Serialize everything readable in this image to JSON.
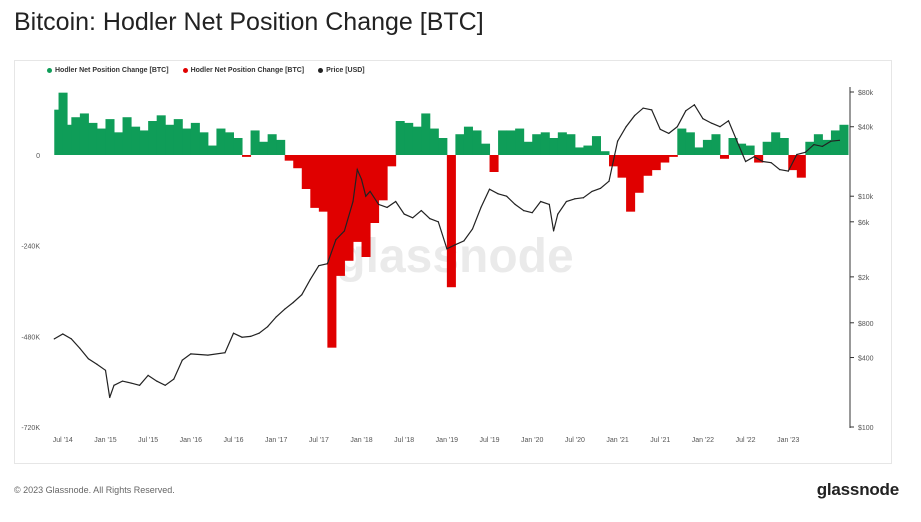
{
  "title": "Bitcoin: Hodler Net Position Change [BTC]",
  "footer": "© 2023 Glassnode. All Rights Reserved.",
  "brand": "glassnode",
  "watermark": "glassnode",
  "colors": {
    "positive": "#0f9d58",
    "negative": "#e00000",
    "price": "#222222"
  },
  "chart_data": {
    "type": "area",
    "title": "Bitcoin: Hodler Net Position Change [BTC]",
    "legend_position": "top-left",
    "legend": [
      "Hodler Net Position Change [BTC]",
      "Hodler Net Position Change [BTC]",
      "Price [USD]"
    ],
    "x_ticks": [
      "Jul '14",
      "Jan '15",
      "Jul '15",
      "Jan '16",
      "Jul '16",
      "Jan '17",
      "Jul '17",
      "Jan '18",
      "Jul '18",
      "Jan '19",
      "Jul '19",
      "Jan '20",
      "Jul '20",
      "Jan '21",
      "Jul '21",
      "Jan '22",
      "Jul '22",
      "Jan '23"
    ],
    "y_left": {
      "ticks": [
        0,
        -240000,
        -480000,
        -720000
      ],
      "tick_labels": [
        "0",
        "-240K",
        "-480K",
        "-720K"
      ],
      "ylim": [
        -720000,
        180000
      ]
    },
    "y_right": {
      "scale": "log",
      "ticks": [
        80000,
        40000,
        10000,
        6000,
        2000,
        800,
        400,
        100
      ],
      "tick_labels": [
        "$80k",
        "$40k",
        "$10k",
        "$6k",
        "$2k",
        "$800",
        "$400",
        "$100"
      ]
    },
    "series": [
      {
        "name": "Hodler Net Position Change [BTC]",
        "x": [
          2014.4,
          2014.45,
          2014.5,
          2014.6,
          2014.7,
          2014.8,
          2014.9,
          2015.0,
          2015.1,
          2015.2,
          2015.3,
          2015.4,
          2015.5,
          2015.6,
          2015.7,
          2015.8,
          2015.9,
          2016.0,
          2016.1,
          2016.2,
          2016.3,
          2016.4,
          2016.5,
          2016.6,
          2016.7,
          2016.8,
          2016.9,
          2017.0,
          2017.1,
          2017.2,
          2017.3,
          2017.4,
          2017.5,
          2017.6,
          2017.7,
          2017.8,
          2017.9,
          2018.0,
          2018.1,
          2018.2,
          2018.3,
          2018.4,
          2018.5,
          2018.6,
          2018.7,
          2018.8,
          2018.9,
          2019.0,
          2019.1,
          2019.2,
          2019.3,
          2019.4,
          2019.5,
          2019.6,
          2019.7,
          2019.8,
          2019.9,
          2020.0,
          2020.1,
          2020.2,
          2020.3,
          2020.4,
          2020.5,
          2020.6,
          2020.7,
          2020.8,
          2020.9,
          2021.0,
          2021.1,
          2021.2,
          2021.3,
          2021.4,
          2021.5,
          2021.6,
          2021.7,
          2021.8,
          2021.9,
          2022.0,
          2022.1,
          2022.2,
          2022.3,
          2022.4,
          2022.5,
          2022.6,
          2022.7,
          2022.8,
          2022.9,
          2023.0,
          2023.1,
          2023.2,
          2023.3,
          2023.4,
          2023.5,
          2023.6
        ],
        "values": [
          120000,
          165000,
          80000,
          100000,
          110000,
          85000,
          70000,
          95000,
          60000,
          100000,
          75000,
          65000,
          90000,
          105000,
          80000,
          95000,
          70000,
          85000,
          60000,
          25000,
          70000,
          60000,
          45000,
          -5000,
          65000,
          35000,
          55000,
          40000,
          -15000,
          -35000,
          -90000,
          -140000,
          -150000,
          -510000,
          -320000,
          -280000,
          -230000,
          -270000,
          -180000,
          -120000,
          -30000,
          90000,
          85000,
          75000,
          110000,
          70000,
          45000,
          -350000,
          55000,
          75000,
          65000,
          30000,
          -45000,
          65000,
          65000,
          70000,
          35000,
          55000,
          60000,
          45000,
          60000,
          55000,
          20000,
          25000,
          50000,
          10000,
          -30000,
          -60000,
          -150000,
          -100000,
          -55000,
          -40000,
          -20000,
          -5000,
          70000,
          60000,
          20000,
          40000,
          55000,
          -10000,
          45000,
          30000,
          25000,
          -20000,
          35000,
          60000,
          45000,
          -40000,
          -60000,
          35000,
          55000,
          40000,
          65000,
          80000
        ],
        "positive_color": "#0f9d58",
        "negative_color": "#e00000"
      },
      {
        "name": "Price [USD]",
        "x": [
          2014.4,
          2014.5,
          2014.6,
          2014.7,
          2014.8,
          2014.9,
          2015.0,
          2015.05,
          2015.1,
          2015.2,
          2015.3,
          2015.4,
          2015.5,
          2015.6,
          2015.7,
          2015.8,
          2015.9,
          2016.0,
          2016.2,
          2016.4,
          2016.5,
          2016.6,
          2016.7,
          2016.8,
          2016.9,
          2017.0,
          2017.1,
          2017.2,
          2017.3,
          2017.4,
          2017.5,
          2017.6,
          2017.7,
          2017.8,
          2017.9,
          2017.95,
          2018.0,
          2018.05,
          2018.1,
          2018.2,
          2018.3,
          2018.4,
          2018.5,
          2018.6,
          2018.7,
          2018.8,
          2018.9,
          2019.0,
          2019.1,
          2019.2,
          2019.3,
          2019.4,
          2019.5,
          2019.6,
          2019.7,
          2019.8,
          2019.9,
          2020.0,
          2020.1,
          2020.2,
          2020.25,
          2020.3,
          2020.4,
          2020.5,
          2020.6,
          2020.7,
          2020.8,
          2020.9,
          2021.0,
          2021.1,
          2021.2,
          2021.3,
          2021.4,
          2021.5,
          2021.6,
          2021.7,
          2021.8,
          2021.9,
          2022.0,
          2022.1,
          2022.2,
          2022.3,
          2022.4,
          2022.5,
          2022.6,
          2022.7,
          2022.8,
          2022.9,
          2023.0,
          2023.1,
          2023.2,
          2023.3,
          2023.4,
          2023.5,
          2023.6
        ],
        "values": [
          580,
          640,
          580,
          480,
          390,
          350,
          310,
          180,
          230,
          250,
          240,
          230,
          280,
          250,
          230,
          260,
          380,
          430,
          420,
          440,
          650,
          600,
          610,
          650,
          740,
          900,
          1050,
          1200,
          1400,
          1900,
          2500,
          2600,
          4200,
          5000,
          9000,
          17000,
          14000,
          10000,
          11000,
          8500,
          8000,
          9000,
          7000,
          6500,
          7500,
          6400,
          6000,
          3500,
          3800,
          4100,
          5200,
          8000,
          11500,
          10500,
          10000,
          8500,
          7500,
          7200,
          9000,
          8500,
          5000,
          7000,
          9000,
          9500,
          9700,
          11000,
          11700,
          13500,
          30000,
          40000,
          50000,
          58000,
          56000,
          38000,
          35000,
          40000,
          55000,
          62000,
          47000,
          43000,
          40000,
          45000,
          30000,
          20000,
          22000,
          20000,
          19500,
          17000,
          16500,
          23000,
          24000,
          28000,
          27000,
          30000,
          30500
        ]
      }
    ]
  }
}
